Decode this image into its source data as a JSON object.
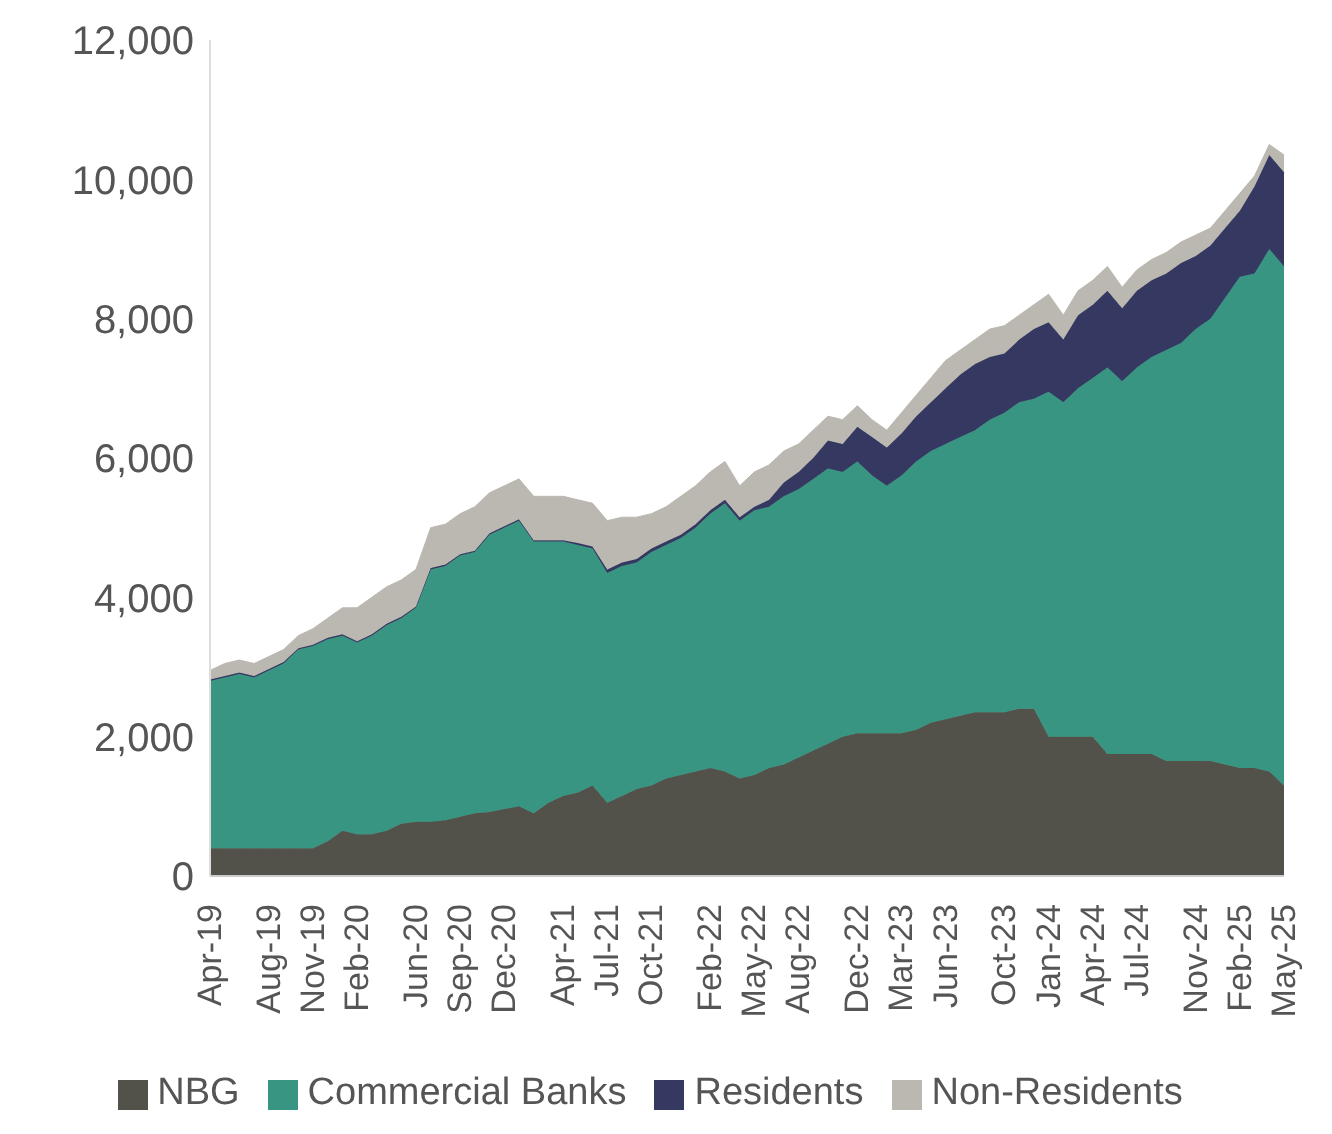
{
  "chart_data": {
    "type": "area",
    "stacked": true,
    "legend": "bottom",
    "grid": false,
    "categories": [
      "Apr-19",
      null,
      null,
      null,
      "Aug-19",
      null,
      null,
      "Nov-19",
      null,
      null,
      "Feb-20",
      null,
      null,
      null,
      "Jun-20",
      null,
      null,
      "Sep-20",
      null,
      null,
      "Dec-20",
      null,
      null,
      null,
      "Apr-21",
      null,
      null,
      "Jul-21",
      null,
      null,
      "Oct-21",
      null,
      null,
      null,
      "Feb-22",
      null,
      null,
      "May-22",
      null,
      null,
      "Aug-22",
      null,
      null,
      null,
      "Dec-22",
      null,
      null,
      "Mar-23",
      null,
      null,
      "Jun-23",
      null,
      null,
      null,
      "Oct-23",
      null,
      null,
      "Jan-24",
      null,
      null,
      "Apr-24",
      null,
      null,
      "Jul-24",
      null,
      null,
      null,
      "Nov-24",
      null,
      null,
      "Feb-25",
      null,
      null,
      "May-25"
    ],
    "ylim": [
      0,
      12000
    ],
    "yticks": [
      0,
      {
        "value": 2000,
        "label": "2,000"
      },
      {
        "value": 4000,
        "label": "4,000"
      },
      {
        "value": 6000,
        "label": "6,000"
      },
      {
        "value": 8000,
        "label": "8,000"
      },
      {
        "value": 10000,
        "label": "10,000"
      },
      {
        "value": 12000,
        "label": "12,000"
      }
    ],
    "series": [
      {
        "name": "NBG",
        "color": "#52524a",
        "values": [
          400,
          400,
          400,
          400,
          400,
          400,
          400,
          400,
          500,
          650,
          600,
          600,
          650,
          750,
          780,
          780,
          800,
          850,
          900,
          920,
          960,
          1000,
          900,
          1050,
          1150,
          1200,
          1300,
          1050,
          1150,
          1250,
          1300,
          1400,
          1450,
          1500,
          1550,
          1500,
          1400,
          1450,
          1550,
          1600,
          1700,
          1800,
          1900,
          2000,
          2050,
          2050,
          2050,
          2050,
          2100,
          2200,
          2250,
          2300,
          2350,
          2350,
          2350,
          2400,
          2400,
          2000,
          2000,
          2000,
          2000,
          1750,
          1750,
          1750,
          1750,
          1650,
          1650,
          1650,
          1650,
          1600,
          1550,
          1550,
          1500,
          1300
        ]
      },
      {
        "name": "Commercial Banks",
        "color": "#389582",
        "values": [
          2400,
          2450,
          2500,
          2450,
          2550,
          2650,
          2850,
          2900,
          2900,
          2800,
          2750,
          2850,
          2950,
          2950,
          3070,
          3620,
          3650,
          3750,
          3750,
          3980,
          4040,
          4100,
          3900,
          3750,
          3650,
          3550,
          3400,
          3300,
          3300,
          3250,
          3350,
          3350,
          3400,
          3500,
          3650,
          3850,
          3700,
          3800,
          3750,
          3850,
          3850,
          3900,
          3950,
          3800,
          3900,
          3700,
          3550,
          3700,
          3850,
          3900,
          3950,
          4000,
          4050,
          4200,
          4300,
          4400,
          4450,
          4950,
          4800,
          5000,
          5150,
          5550,
          5350,
          5550,
          5700,
          5900,
          6000,
          6200,
          6350,
          6700,
          7050,
          7100,
          7500,
          7450
        ]
      },
      {
        "name": "Residents",
        "color": "#353961",
        "values": [
          20,
          20,
          20,
          20,
          20,
          20,
          20,
          20,
          20,
          20,
          20,
          20,
          20,
          20,
          20,
          20,
          20,
          20,
          20,
          20,
          20,
          20,
          20,
          20,
          20,
          30,
          30,
          50,
          50,
          50,
          50,
          50,
          50,
          50,
          50,
          50,
          50,
          50,
          100,
          200,
          250,
          300,
          400,
          400,
          500,
          550,
          550,
          600,
          650,
          700,
          800,
          900,
          950,
          900,
          850,
          900,
          1000,
          1000,
          900,
          1050,
          1050,
          1100,
          1050,
          1100,
          1100,
          1100,
          1150,
          1050,
          1050,
          1000,
          950,
          1250,
          1350,
          1350
        ]
      },
      {
        "name": "Non-Residents",
        "color": "#bab8b0",
        "values": [
          130,
          180,
          180,
          180,
          180,
          180,
          180,
          230,
          280,
          380,
          480,
          530,
          530,
          530,
          530,
          580,
          580,
          580,
          630,
          580,
          580,
          580,
          630,
          630,
          630,
          620,
          620,
          700,
          650,
          600,
          500,
          500,
          550,
          550,
          550,
          550,
          450,
          500,
          500,
          450,
          400,
          400,
          350,
          350,
          300,
          250,
          250,
          300,
          300,
          350,
          400,
          350,
          350,
          400,
          400,
          350,
          350,
          400,
          350,
          350,
          350,
          350,
          300,
          300,
          300,
          300,
          300,
          300,
          250,
          250,
          250,
          150,
          150,
          250
        ]
      }
    ]
  }
}
